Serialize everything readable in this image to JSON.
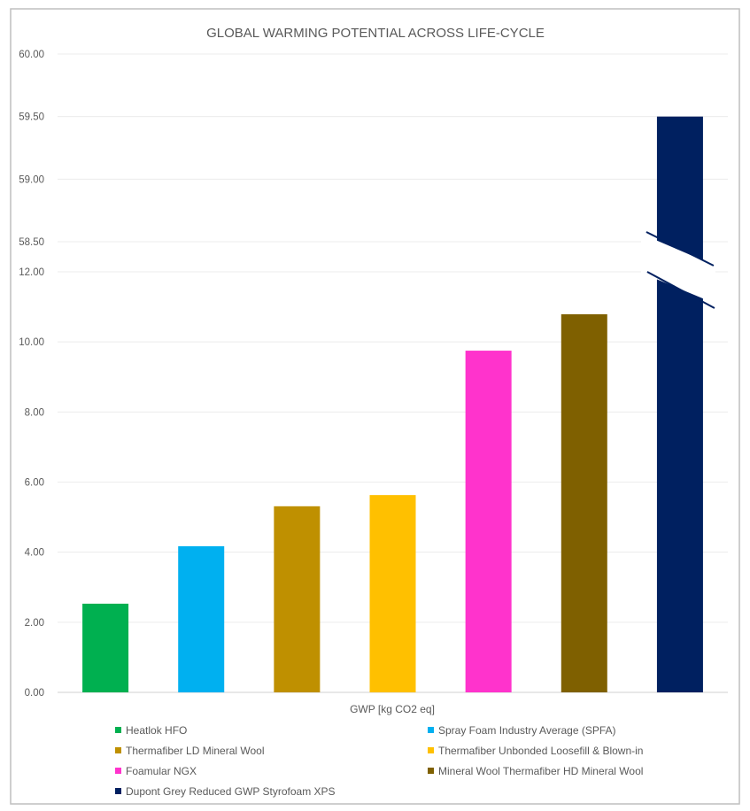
{
  "chart_data": {
    "type": "bar",
    "title": "GLOBAL WARMING POTENTIAL ACROSS LIFE-CYCLE",
    "xlabel": "GWP [kg CO2 eq]",
    "ylabel": "",
    "axis_break": {
      "lower_range": [
        0,
        12
      ],
      "upper_range": [
        58.5,
        60
      ]
    },
    "lower_ticks": [
      "0.00",
      "2.00",
      "4.00",
      "6.00",
      "8.00",
      "10.00",
      "12.00"
    ],
    "upper_ticks": [
      "58.50",
      "59.00",
      "59.50",
      "60.00"
    ],
    "grid": true,
    "legend_position": "bottom",
    "series": [
      {
        "name": "Heatlok HFO",
        "value": 2.53,
        "color": "#00B050"
      },
      {
        "name": "Spray Foam Industry Average (SPFA)",
        "value": 4.17,
        "color": "#00B0F0"
      },
      {
        "name": "Thermafiber LD Mineral Wool",
        "value": 5.31,
        "color": "#BF9000"
      },
      {
        "name": "Thermafiber Unbonded Loosefill & Blown-in",
        "value": 5.63,
        "color": "#FFC000"
      },
      {
        "name": "Foamular NGX",
        "value": 9.75,
        "color": "#FF33CC"
      },
      {
        "name": "Mineral Wool Thermafiber HD Mineral Wool",
        "value": 10.79,
        "color": "#7F6000"
      },
      {
        "name": "Dupont Grey Reduced GWP Styrofoam XPS",
        "value": 59.5,
        "color": "#002060"
      }
    ]
  }
}
